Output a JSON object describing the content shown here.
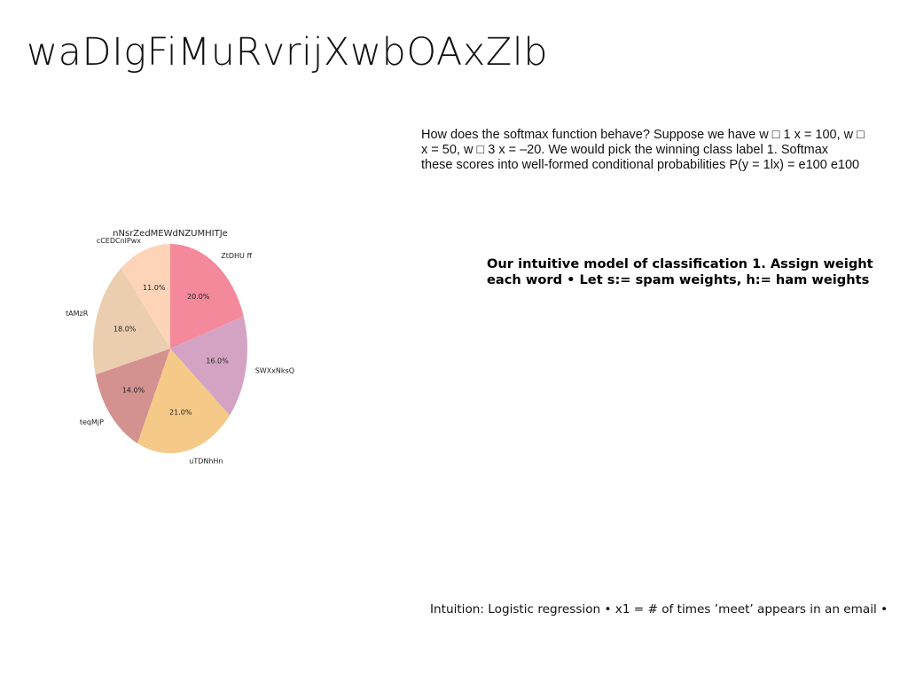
{
  "slide": {
    "title": "waDIgFiMuRvrijXwbOAxZlb",
    "softmax_lines": [
      "How does the softmax function behave? Suppose we have w □ 1 x = 100, w □",
      "x = 50, w □ 3 x = –20. We would pick the winning class label 1. Softmax",
      "these scores into well-formed conditional probabilities P(y = 1lx) = e100 e100"
    ],
    "model_lines": [
      "Our intuitive model of classification 1. Assign weight",
      "each word • Let s:= spam weights, h:= ham weights"
    ],
    "intuition": "Intuition: Logistic regression • x1 = # of times ’meet’ appears in an email •"
  },
  "chart_data": {
    "type": "pie",
    "title": "nNsrZedMEWdNZUMHITJe",
    "start_angle_deg": 90,
    "direction": "clockwise",
    "slices": [
      {
        "label": "ZtDHU ff",
        "value": 20.0,
        "pct_label": "20.0%",
        "color": "#f4899c"
      },
      {
        "label": "SWXxNksQ",
        "value": 16.0,
        "pct_label": "16.0%",
        "color": "#d4a3c4"
      },
      {
        "label": "uTDNhHn",
        "value": 21.0,
        "pct_label": "21.0%",
        "color": "#f5c987"
      },
      {
        "label": "teqMjP",
        "value": 14.0,
        "pct_label": "14.0%",
        "color": "#d3918f"
      },
      {
        "label": "tAMzR",
        "value": 18.0,
        "pct_label": "18.0%",
        "color": "#ebcdb0"
      },
      {
        "label": "cCEDCnlPwx",
        "value": 11.0,
        "pct_label": "11.0%",
        "color": "#fdd4b8"
      }
    ]
  }
}
